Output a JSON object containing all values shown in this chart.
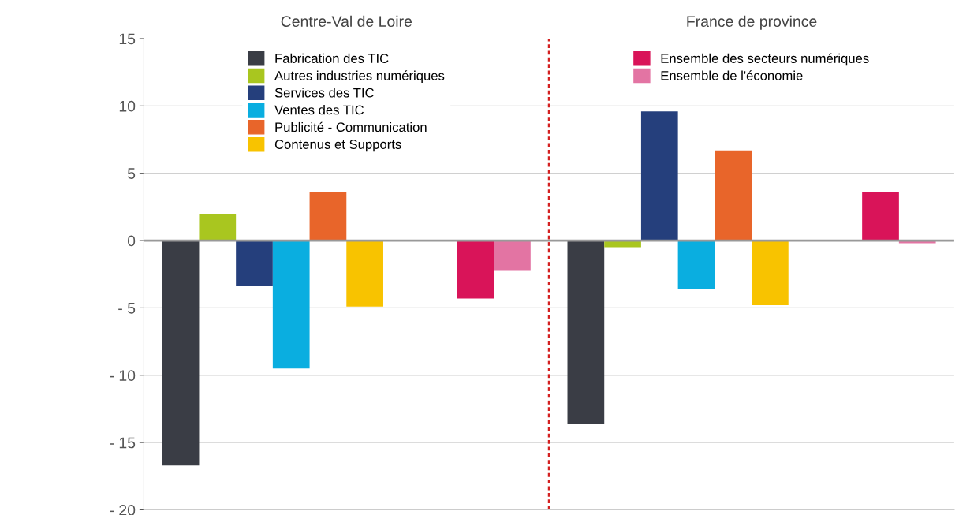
{
  "chart_data": {
    "type": "bar",
    "categories": [
      "Centre-Val de Loire",
      "France de province"
    ],
    "ylim": [
      -20,
      15
    ],
    "yticks": [
      15,
      10,
      5,
      0,
      {
        "value": -5,
        "label": "- 5"
      },
      {
        "value": -10,
        "label": "- 10"
      },
      {
        "value": -15,
        "label": "- 15"
      },
      {
        "value": -20,
        "label": "- 20"
      }
    ],
    "grid": "y",
    "legend": "top",
    "series": [
      {
        "name": "Fabrication des TIC",
        "color": "#3a3d45",
        "values": [
          -16.7,
          -13.6
        ]
      },
      {
        "name": "Autres industries numériques",
        "color": "#a9c61f",
        "values": [
          2.0,
          -0.5
        ]
      },
      {
        "name": "Services des TIC",
        "color": "#253f7c",
        "values": [
          -3.4,
          9.6
        ]
      },
      {
        "name": "Ventes des TIC",
        "color": "#0aaee0",
        "values": [
          -9.5,
          -3.6
        ]
      },
      {
        "name": "Publicité - Communication",
        "color": "#e8652a",
        "values": [
          3.6,
          6.7
        ]
      },
      {
        "name": "Contenus et Supports",
        "color": "#f8c300",
        "values": [
          -4.9,
          -4.8
        ]
      },
      {
        "name": "Ensemble des secteurs numériques",
        "color": "#d91459",
        "values": [
          -4.3,
          3.6
        ]
      },
      {
        "name": "Ensemble de l'économie",
        "color": "#e374a3",
        "values": [
          -2.2,
          -0.2
        ]
      }
    ]
  }
}
